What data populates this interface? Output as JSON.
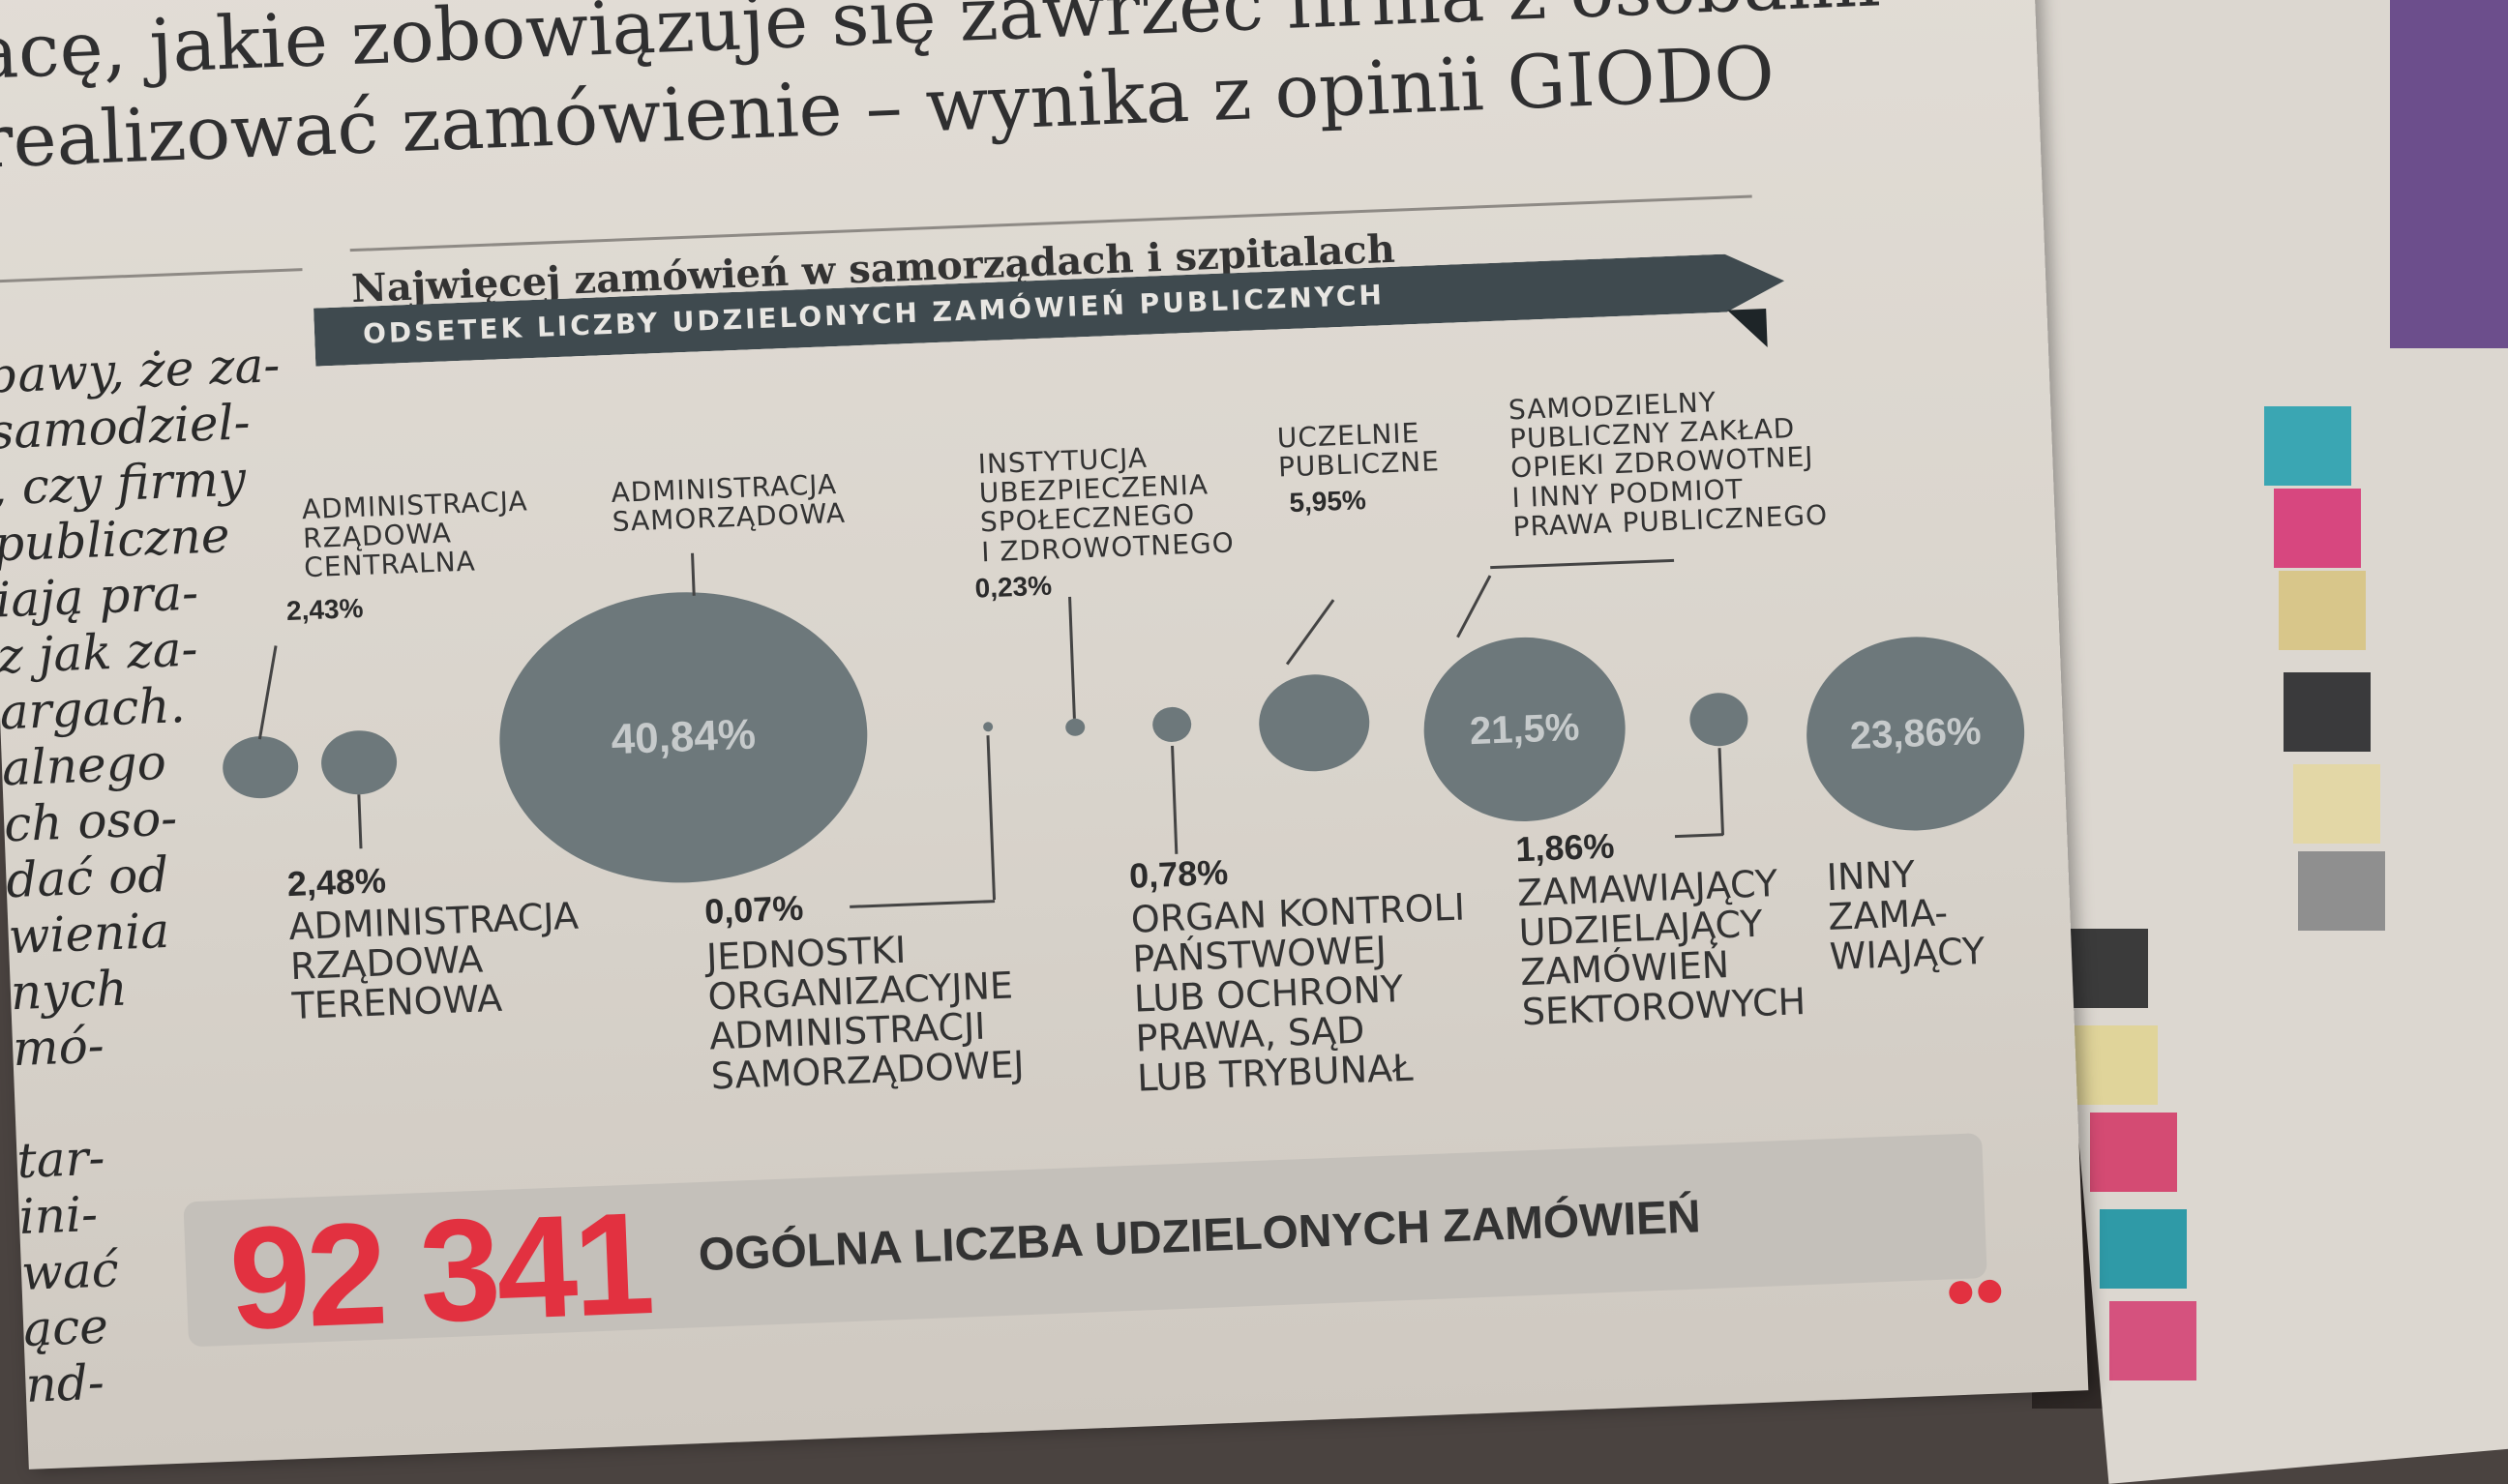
{
  "article": {
    "headline_lines": [
      "acę, jakie zobowiązuje się zawrzeć firma z osobami",
      "realizować zamówienie – wynika z opinii GIODO"
    ],
    "body_lines": [
      "bawy, że za-",
      "samodziel-",
      ", czy firmy",
      "publiczne",
      "iają pra-",
      "z jak za-",
      "argach.",
      "alnego",
      "ch oso-",
      "dać od",
      "wienia",
      "nych",
      "mó-",
      "",
      "tar-",
      "ini-",
      "wać",
      "ące",
      "nd-"
    ]
  },
  "infographic": {
    "title": "Najwięcej zamówień w samorządach i szpitalach",
    "banner": "ODSETEK LICZBY UDZIELONYCH ZAMÓWIEŃ PUBLICZNYCH",
    "bubbles": [
      {
        "value": "2,43%",
        "label": "ADMINISTRACJA RZĄDOWA CENTRALNA"
      },
      {
        "value": "2,48%",
        "label": "ADMINISTRACJA RZĄDOWA TERENOWA"
      },
      {
        "value": "40,84%",
        "label": "ADMINISTRACJA SAMORZĄDOWA"
      },
      {
        "value": "0,07%",
        "label": "JEDNOSTKI ORGANIZACYJNE ADMINISTRACJI SAMORZĄDOWEJ"
      },
      {
        "value": "0,23%",
        "label": "INSTYTUCJA UBEZPIECZENIA SPOŁECZNEGO I ZDROWOTNEGO"
      },
      {
        "value": "0,78%",
        "label": "ORGAN KONTROLI PAŃSTWOWEJ LUB OCHRONY PRAWA, SĄD LUB TRYBUNAŁ"
      },
      {
        "value": "5,95%",
        "label": "UCZELNIE PUBLICZNE"
      },
      {
        "value": "21,5%",
        "label": "SAMODZIELNY PUBLICZNY ZAKŁAD OPIEKI ZDROWOTNEJ I INNY PODMIOT PRAWA PUBLICZNEGO"
      },
      {
        "value": "1,86%",
        "label": "ZAMAWIAJĄCY UDZIELAJĄCY ZAMÓWIEŃ SEKTOROWYCH"
      },
      {
        "value": "23,86%",
        "label": "INNY ZAMAWIAJĄCY"
      }
    ],
    "total": {
      "number": "92 341",
      "label": "OGÓLNA LICZBA UDZIELONYCH ZAMÓWIEŃ"
    }
  },
  "labels_multiline": {
    "central": [
      "ADMINISTRACJA",
      "RZĄDOWA",
      "CENTRALNA"
    ],
    "terenowa": [
      "ADMINISTRACJA",
      "RZĄDOWA",
      "TERENOWA"
    ],
    "samorzad": [
      "ADMINISTRACJA",
      "SAMORZĄDOWA"
    ],
    "jednostki": [
      "JEDNOSTKI",
      "ORGANIZACYJNE",
      "ADMINISTRACJI",
      "SAMORZĄDOWEJ"
    ],
    "instytucja": [
      "INSTYTUCJA",
      "UBEZPIECZENIA",
      "SPOŁECZNEGO",
      "I ZDROWOTNEGO"
    ],
    "organ": [
      "ORGAN KONTROLI",
      "PAŃSTWOWEJ",
      "LUB OCHRONY",
      "PRAWA, SĄD",
      "LUB TRYBUNAŁ"
    ],
    "uczelnie": [
      "UCZELNIE",
      "PUBLICZNE"
    ],
    "spzoz": [
      "SAMODZIELNY",
      "PUBLICZNY ZAKŁAD",
      "OPIEKI ZDROWOTNEJ",
      "I INNY PODMIOT",
      "PRAWA PUBLICZNEGO"
    ],
    "sektor": [
      "ZAMAWIAJĄCY",
      "UDZIELAJĄCY",
      "ZAMÓWIEŃ",
      "SEKTOROWYCH"
    ],
    "inny": [
      "INNY",
      "ZAMA-",
      "WIAJĄCY"
    ]
  },
  "colors": {
    "bubble": "#6d787b",
    "banner": "#3f4a4f",
    "total_number": "#e23140"
  }
}
